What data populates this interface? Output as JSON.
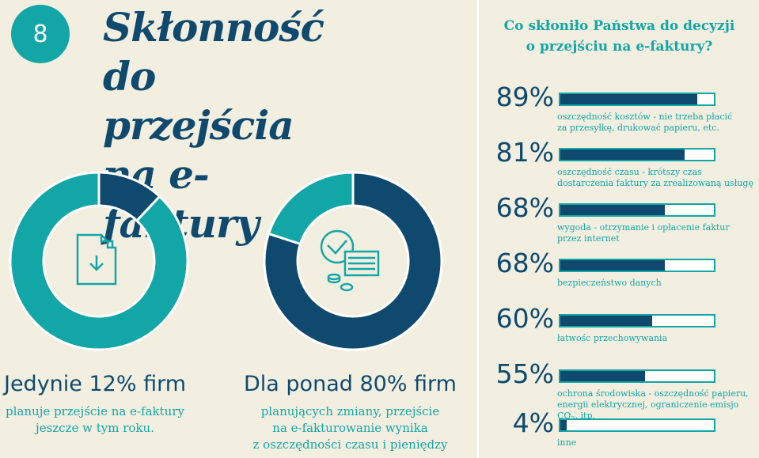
{
  "colors": {
    "teal": "#13a6a6",
    "navy": "#0f4a6e",
    "background": "#f2efe0"
  },
  "badge": "8",
  "title": "Skłonność do przejścia na e-faktury",
  "left_panel": {
    "head": "Jedynie 12% firm",
    "body": [
      "planuje przejście na e-faktury",
      "jeszcze w tym roku."
    ],
    "icon": "invoice-document-download-icon"
  },
  "middle_panel": {
    "head": "Dla ponad 80% firm",
    "body": [
      "planujących zmiany, przejście",
      "na e-fakturowanie wynika",
      "z oszczędności czasu i pieniędzy"
    ],
    "icon": "clock-money-icon"
  },
  "right_panel": {
    "question": [
      "Co skłoniło Państwa do decyzji",
      "o przejściu na e-faktury?"
    ]
  },
  "chart_data": [
    {
      "type": "pie",
      "slices": [
        {
          "value": 12,
          "color": "#0f4a6e"
        },
        {
          "value": 88,
          "color": "#13a6a6"
        }
      ]
    },
    {
      "type": "pie",
      "slices": [
        {
          "value": 80,
          "color": "#0f4a6e"
        },
        {
          "value": 20,
          "color": "#13a6a6"
        }
      ]
    },
    {
      "type": "bar",
      "orientation": "horizontal",
      "xlim": [
        0,
        100
      ],
      "bars": [
        {
          "value": 89,
          "label": "89%",
          "desc": [
            "oszczędność kosztów - nie trzeba płacić",
            "za przesyłkę, drukować papieru, etc."
          ]
        },
        {
          "value": 81,
          "label": "81%",
          "desc": [
            "oszczędność czasu - krótszy czas",
            "dostarczenia faktury za zrealizowaną usługę"
          ]
        },
        {
          "value": 68,
          "label": "68%",
          "desc": [
            "wygoda - otrzymanie i opłacenie faktur",
            "przez internet"
          ]
        },
        {
          "value": 68,
          "label": "68%",
          "desc": [
            "bezpieczeństwo danych"
          ]
        },
        {
          "value": 60,
          "label": "60%",
          "desc": [
            "łatwośc przechowywania"
          ]
        },
        {
          "value": 55,
          "label": "55%",
          "desc": [
            "ochrona środowiska - oszczędność papieru,",
            "energii elektrycznej, ograniczenie emisjo CO",
            "2",
            ", itp."
          ]
        },
        {
          "value": 4,
          "label": "4%",
          "desc": [
            "inne"
          ]
        }
      ]
    }
  ]
}
